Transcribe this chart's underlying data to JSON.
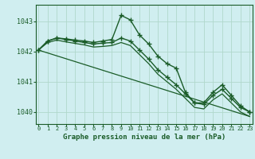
{
  "title": "Graphe pression niveau de la mer (hPa)",
  "bg_color": "#d0eef0",
  "grid_color": "#b0d8cc",
  "line_color": "#1a5c28",
  "marker_color": "#1a5c28",
  "ylim": [
    1039.6,
    1043.55
  ],
  "xlim": [
    -0.3,
    23.3
  ],
  "yticks": [
    1040,
    1041,
    1042,
    1043
  ],
  "xticks": [
    0,
    1,
    2,
    3,
    4,
    5,
    6,
    7,
    8,
    9,
    10,
    11,
    12,
    13,
    14,
    15,
    16,
    17,
    18,
    19,
    20,
    21,
    22,
    23
  ],
  "series": [
    {
      "x": [
        0,
        1,
        2,
        3,
        4,
        5,
        6,
        7,
        8,
        9,
        10,
        11,
        12,
        13,
        14,
        15,
        16,
        17,
        18,
        19,
        20,
        21,
        22,
        23
      ],
      "y": [
        1042.05,
        1042.35,
        1042.45,
        1042.42,
        1042.38,
        1042.35,
        1042.3,
        1042.35,
        1042.4,
        1043.2,
        1043.05,
        1042.55,
        1042.25,
        1041.85,
        1041.6,
        1041.45,
        1040.65,
        1040.3,
        1040.3,
        1040.65,
        1040.9,
        1040.55,
        1040.2,
        1040.0
      ],
      "marker": "+",
      "markersize": 4,
      "lw": 1.0
    },
    {
      "x": [
        0,
        1,
        2,
        3,
        4,
        5,
        6,
        7,
        8,
        9,
        10,
        11,
        12,
        13,
        14,
        15,
        16,
        17,
        18,
        19,
        20,
        21,
        22,
        23
      ],
      "y": [
        1042.05,
        1042.35,
        1042.45,
        1042.4,
        1042.35,
        1042.3,
        1042.25,
        1042.28,
        1042.3,
        1042.45,
        1042.35,
        1042.05,
        1041.75,
        1041.4,
        1041.15,
        1040.9,
        1040.6,
        1040.3,
        1040.25,
        1040.55,
        1040.75,
        1040.45,
        1040.15,
        1040.0
      ],
      "marker": "+",
      "markersize": 4,
      "lw": 1.0
    },
    {
      "x": [
        0,
        1,
        2,
        3,
        4,
        5,
        6,
        7,
        8,
        9,
        10,
        11,
        12,
        13,
        14,
        15,
        16,
        17,
        18,
        19,
        20,
        21,
        22,
        23
      ],
      "y": [
        1042.05,
        1042.3,
        1042.38,
        1042.32,
        1042.27,
        1042.22,
        1042.15,
        1042.17,
        1042.2,
        1042.3,
        1042.2,
        1041.9,
        1041.6,
        1041.25,
        1041.0,
        1040.75,
        1040.45,
        1040.15,
        1040.1,
        1040.4,
        1040.6,
        1040.3,
        1040.0,
        1039.85
      ],
      "marker": null,
      "markersize": 0,
      "lw": 0.9
    },
    {
      "x": [
        0,
        23
      ],
      "y": [
        1042.05,
        1039.85
      ],
      "marker": null,
      "markersize": 0,
      "lw": 0.9
    }
  ]
}
